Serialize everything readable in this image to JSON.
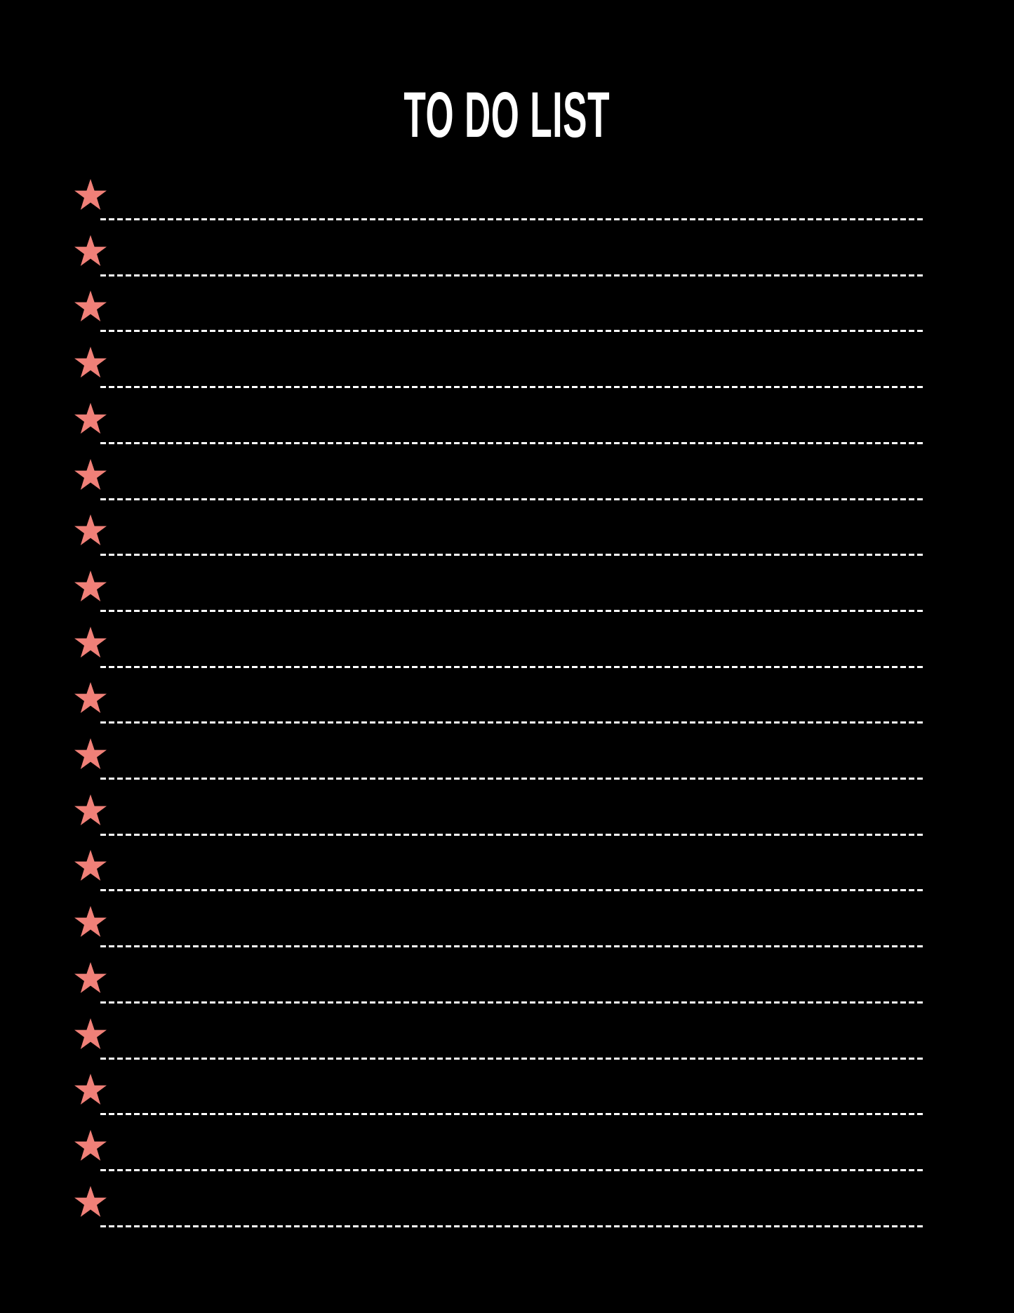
{
  "title": "TO DO LIST",
  "colors": {
    "background": "#000000",
    "star": "#f08078",
    "line": "#ffffff",
    "title": "#ffffff"
  },
  "bullet_icon": "star-icon",
  "items": [
    "",
    "",
    "",
    "",
    "",
    "",
    "",
    "",
    "",
    "",
    "",
    "",
    "",
    "",
    "",
    "",
    "",
    "",
    ""
  ]
}
